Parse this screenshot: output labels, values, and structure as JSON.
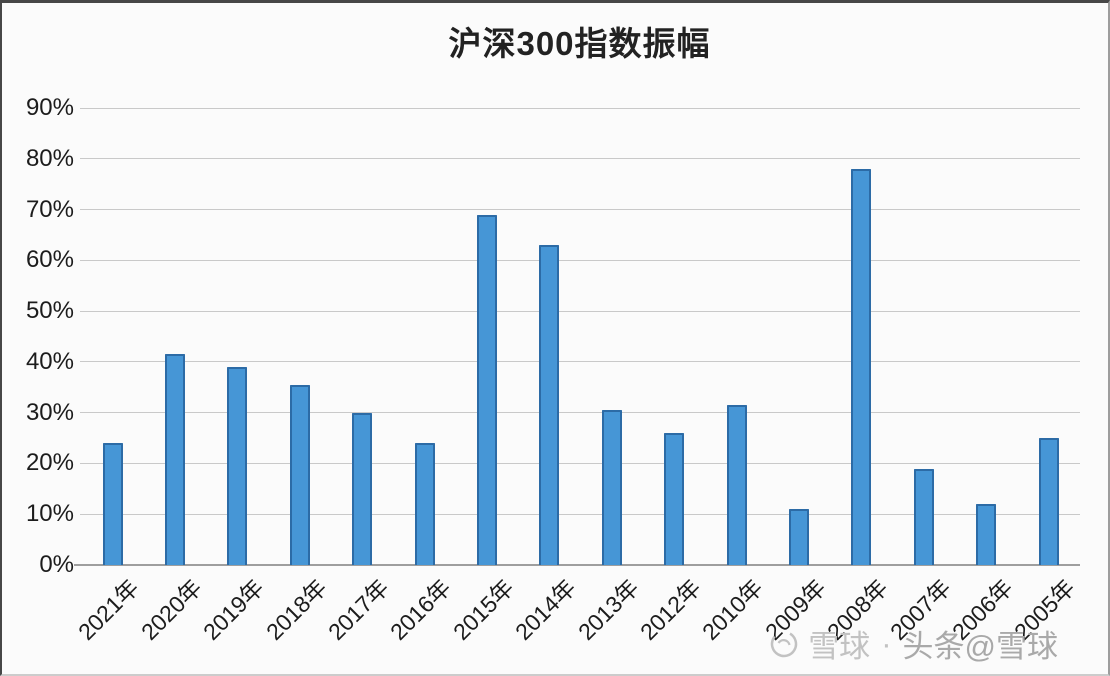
{
  "title": "沪深300指数振幅",
  "watermark": {
    "logo": "xueqiu-snowball-logo",
    "brand": "雪球",
    "separator": "·",
    "handle": "头条@雪球"
  },
  "chart_data": {
    "type": "bar",
    "title": "沪深300指数振幅",
    "categories": [
      "2021年",
      "2020年",
      "2019年",
      "2018年",
      "2017年",
      "2016年",
      "2015年",
      "2014年",
      "2013年",
      "2012年",
      "2010年",
      "2009年",
      "2008年",
      "2007年",
      "2006年",
      "2005年"
    ],
    "values": [
      24,
      41.5,
      39,
      35.5,
      30,
      24,
      69,
      63,
      30.5,
      26,
      31.5,
      11,
      78,
      19,
      12,
      25
    ],
    "xlabel": "",
    "ylabel": "",
    "ylim": [
      0,
      90
    ],
    "ytick_step": 10,
    "ytick_labels": [
      "0%",
      "10%",
      "20%",
      "30%",
      "40%",
      "50%",
      "60%",
      "70%",
      "80%",
      "90%"
    ],
    "grid": true,
    "legend": false,
    "bar_fill": "#4696d6",
    "bar_border": "#2c6ba6",
    "gridline_color": "#c9c9c9",
    "axis_color": "#9e9e9e",
    "text_color": "#1c1c1c"
  }
}
